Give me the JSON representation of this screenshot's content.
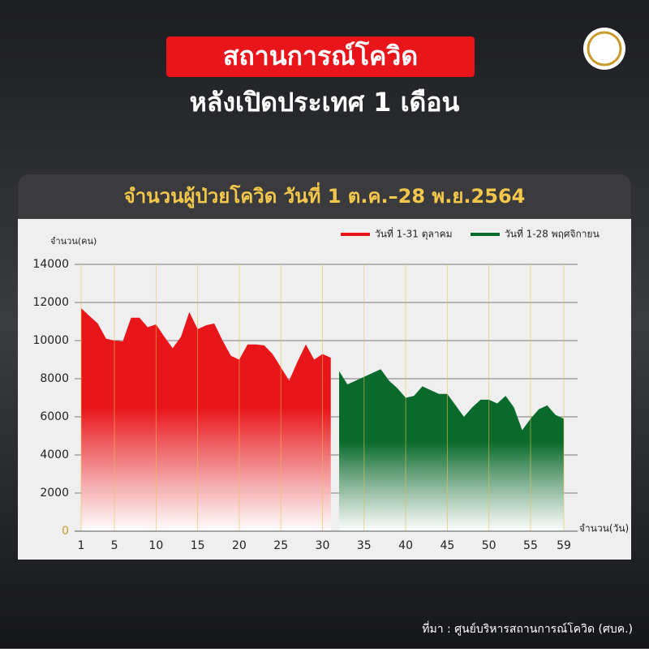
{
  "header": {
    "title": "สถานการณ์โควิด",
    "subtitle": "หลังเปิดประเทศ 1 เดือน"
  },
  "chart_data": {
    "type": "area",
    "title": "จำนวนผู้ป่วยโควิด วันที่ 1 ต.ค.–28 พ.ย.2564",
    "y_label": "จำนวน(คน)",
    "x_label": "จำนวน(วัน)",
    "series": [
      {
        "name": "วันที่ 1-31 ตุลาคม",
        "color": "#e8161b",
        "x": [
          1,
          2,
          3,
          4,
          5,
          6,
          7,
          8,
          9,
          10,
          11,
          12,
          13,
          14,
          15,
          16,
          17,
          18,
          19,
          20,
          21,
          22,
          23,
          24,
          25,
          26,
          27,
          28,
          29,
          30,
          31
        ],
        "values": [
          11700,
          11300,
          10900,
          10100,
          10000,
          9950,
          11200,
          11200,
          10700,
          10850,
          10200,
          9600,
          10200,
          11500,
          10600,
          10800,
          10900,
          10000,
          9200,
          9000,
          9800,
          9800,
          9750,
          9300,
          8600,
          7900,
          8900,
          9800,
          9000,
          9300,
          9100
        ]
      },
      {
        "name": "วันที่ 1-28 พฤศจิกายน",
        "color": "#0a6a2c",
        "x": [
          32,
          33,
          34,
          35,
          36,
          37,
          38,
          39,
          40,
          41,
          42,
          43,
          44,
          45,
          46,
          47,
          48,
          49,
          50,
          51,
          52,
          53,
          54,
          55,
          56,
          57,
          58,
          59
        ],
        "values": [
          8400,
          7700,
          7900,
          8100,
          8300,
          8500,
          7900,
          7500,
          7000,
          7100,
          7600,
          7400,
          7200,
          7200,
          6600,
          6000,
          6500,
          6900,
          6900,
          6700,
          7100,
          6500,
          5300,
          5900,
          6400,
          6600,
          6100,
          5900
        ]
      }
    ],
    "xlim": [
      1,
      59
    ],
    "xticks": [
      1,
      5,
      10,
      15,
      20,
      25,
      30,
      35,
      40,
      45,
      50,
      55,
      59
    ],
    "ylim": [
      0,
      14000
    ],
    "yticks": [
      0,
      2000,
      4000,
      6000,
      8000,
      10000,
      12000,
      14000
    ],
    "grid": true,
    "legend": "top-right"
  },
  "source": "ที่มา : ศูนย์บริหารสถานการณ์โควิด (ศบค.)"
}
